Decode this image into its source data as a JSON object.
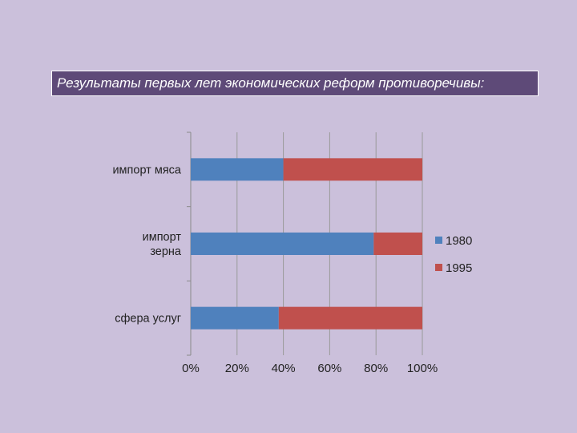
{
  "slide": {
    "title": "Результаты первых лет экономических реформ противоречивы:"
  },
  "colors": {
    "background": "#cbc0db",
    "title_bg": "#5e4a78",
    "series_1980": "#4f81bd",
    "series_1995": "#c0504d"
  },
  "chart_data": {
    "type": "bar",
    "orientation": "horizontal",
    "stacked": "percent",
    "categories": [
      [
        "импорт мяса"
      ],
      [
        "импорт",
        "зерна"
      ],
      [
        "сфера услуг"
      ]
    ],
    "series": [
      {
        "name": "1980",
        "values": [
          40,
          79,
          38
        ],
        "color": "#4f81bd"
      },
      {
        "name": "1995",
        "values": [
          60,
          21,
          62
        ],
        "color": "#c0504d"
      }
    ],
    "x_ticks": [
      "0%",
      "20%",
      "40%",
      "60%",
      "80%",
      "100%"
    ],
    "xlim": [
      0,
      100
    ],
    "grid": true,
    "legend": "right"
  }
}
